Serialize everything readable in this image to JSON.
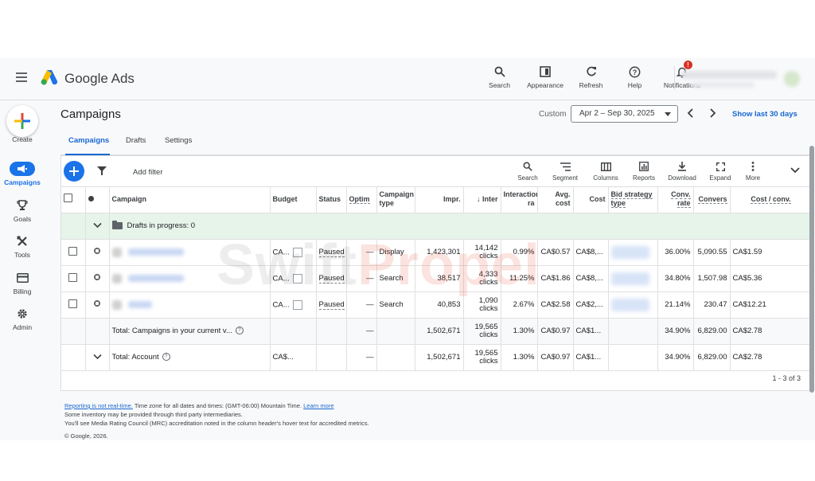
{
  "header": {
    "app_name": "Google Ads",
    "tools": [
      {
        "label": "Search",
        "icon": "search-icon"
      },
      {
        "label": "Appearance",
        "icon": "appearance-icon"
      },
      {
        "label": "Refresh",
        "icon": "refresh-icon"
      },
      {
        "label": "Help",
        "icon": "help-icon"
      },
      {
        "label": "Notifications",
        "icon": "bell-icon",
        "badge": "!"
      }
    ]
  },
  "sidenav": {
    "create_label": "Create",
    "items": [
      {
        "label": "Campaigns",
        "icon": "megaphone-icon",
        "active": true
      },
      {
        "label": "Goals",
        "icon": "trophy-icon"
      },
      {
        "label": "Tools",
        "icon": "tools-icon"
      },
      {
        "label": "Billing",
        "icon": "credit-card-icon"
      },
      {
        "label": "Admin",
        "icon": "gear-icon"
      }
    ]
  },
  "page": {
    "title": "Campaigns",
    "custom_label": "Custom",
    "date_range": "Apr 2 – Sep 30, 2025",
    "show_last": "Show last 30 days",
    "tabs": [
      "Campaigns",
      "Drafts",
      "Settings"
    ]
  },
  "toolbar": {
    "add_filter": "Add filter",
    "tools": [
      "Search",
      "Segment",
      "Columns",
      "Reports",
      "Download",
      "Expand",
      "More"
    ]
  },
  "table": {
    "headers": {
      "campaign": "Campaign",
      "budget": "Budget",
      "status": "Status",
      "optim": "Optim",
      "campaign_type": "Campaign type",
      "impr": "Impr.",
      "inter": "↓ Inter",
      "interaction_rate": "Interaction ra",
      "avg_cost": "Avg. cost",
      "cost": "Cost",
      "bid_strategy": "Bid strategy type",
      "conv_rate": "Conv. rate",
      "conversions": "Convers",
      "cost_conv": "Cost / conv."
    },
    "drafts_row": "Drafts in progress: 0",
    "rows": [
      {
        "budget": "CA...",
        "status": "Paused",
        "optim": "—",
        "type": "Display",
        "impr": "1,423,301",
        "inter_value": "14,142",
        "inter_unit": "clicks",
        "rate": "0.99%",
        "avg_cost": "CA$0.57",
        "cost": "CA$8,...",
        "conv_rate": "36.00%",
        "conversions": "5,090.55",
        "cost_conv": "CA$1.59"
      },
      {
        "budget": "CA...",
        "status": "Paused",
        "optim": "—",
        "type": "Search",
        "impr": "38,517",
        "inter_value": "4,333",
        "inter_unit": "clicks",
        "rate": "11.25%",
        "avg_cost": "CA$1.86",
        "cost": "CA$8,...",
        "conv_rate": "34.80%",
        "conversions": "1,507.98",
        "cost_conv": "CA$5.36"
      },
      {
        "budget": "CA...",
        "status": "Paused",
        "optim": "—",
        "type": "Search",
        "impr": "40,853",
        "inter_value": "1,090",
        "inter_unit": "clicks",
        "rate": "2.67%",
        "avg_cost": "CA$2.58",
        "cost": "CA$2,...",
        "conv_rate": "21.14%",
        "conversions": "230.47",
        "cost_conv": "CA$12.21"
      }
    ],
    "total_campaigns": {
      "label": "Total: Campaigns in your current v...",
      "optim": "—",
      "impr": "1,502,671",
      "inter_value": "19,565",
      "inter_unit": "clicks",
      "rate": "1.30%",
      "avg_cost": "CA$0.97",
      "cost": "CA$1...",
      "conv_rate": "34.90%",
      "conversions": "6,829.00",
      "cost_conv": "CA$2.78"
    },
    "total_account": {
      "label": "Total: Account",
      "budget": "CA$...",
      "optim": "—",
      "impr": "1,502,671",
      "inter_value": "19,565",
      "inter_unit": "clicks",
      "rate": "1.30%",
      "avg_cost": "CA$0.97",
      "cost": "CA$1...",
      "conv_rate": "34.90%",
      "conversions": "6,829.00",
      "cost_conv": "CA$2.78"
    },
    "pager": "1 - 3 of 3"
  },
  "footer": {
    "line1_link": "Reporting is not real-time.",
    "line1_text": " Time zone for all dates and times: (GMT-06:00) Mountain Time. ",
    "line1_link2": "Learn more",
    "line2": "Some inventory may be provided through third party intermediaries.",
    "line3": "You'll see Media Rating Council (MRC) accreditation noted in the column header's hover text for accredited metrics.",
    "copyright": "© Google, 2026."
  },
  "watermark": {
    "part1": "Swift",
    "part2": "Propel"
  },
  "colors": {
    "accent": "#1a73e8",
    "draft_row": "#e6f4ea",
    "badge": "#d93025"
  }
}
